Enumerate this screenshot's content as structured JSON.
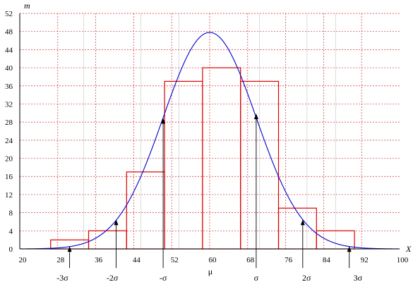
{
  "chart_data": {
    "type": "bar",
    "subtype": "histogram-with-normal-curve",
    "xlabel": "X",
    "ylabel": "m",
    "xlim": [
      20,
      100
    ],
    "ylim": [
      0,
      52
    ],
    "x_ticks": [
      20,
      28,
      36,
      44,
      52,
      60,
      68,
      76,
      84,
      92,
      100
    ],
    "y_ticks": [
      0,
      4,
      8,
      12,
      16,
      20,
      24,
      28,
      32,
      36,
      40,
      44,
      48,
      52
    ],
    "grid": true,
    "grid_color": "#cc3333",
    "histogram": {
      "color": "#dd0000",
      "bins": [
        {
          "from": 26.5,
          "to": 34.5,
          "value": 2
        },
        {
          "from": 34.5,
          "to": 42.5,
          "value": 4
        },
        {
          "from": 42.5,
          "to": 50.5,
          "value": 17
        },
        {
          "from": 50.5,
          "to": 58.5,
          "value": 37
        },
        {
          "from": 58.5,
          "to": 66.5,
          "value": 40
        },
        {
          "from": 66.5,
          "to": 74.5,
          "value": 37
        },
        {
          "from": 74.5,
          "to": 82.5,
          "value": 9
        },
        {
          "from": 82.5,
          "to": 90.5,
          "value": 4
        }
      ]
    },
    "curve": {
      "color": "#0000cc",
      "mean": 60,
      "sd": 9.8,
      "peak": 47.8,
      "x_from": 20,
      "x_to": 100
    },
    "markers": [
      {
        "label": "-3σ",
        "x": 30.5,
        "y_tip": 0.6,
        "label_x": 29
      },
      {
        "label": "-2σ",
        "x": 40.3,
        "y_tip": 6.5,
        "label_x": 39.5
      },
      {
        "label": "-σ",
        "x": 50.2,
        "y_tip": 28.9,
        "label_x": 50.2
      },
      {
        "label": "σ",
        "x": 69.8,
        "y_tip": 29.9,
        "label_x": 69.8
      },
      {
        "label": "2σ",
        "x": 79.6,
        "y_tip": 6.5,
        "label_x": 80.4
      },
      {
        "label": "3σ",
        "x": 89.4,
        "y_tip": 0.6,
        "label_x": 91.2
      }
    ],
    "mu_label": "μ",
    "mu_x": 60,
    "extra_vlines": {
      "color": "#888888",
      "xs": [
        33.5,
        45.5,
        53.5,
        70.5,
        80.5,
        86.5
      ]
    }
  }
}
